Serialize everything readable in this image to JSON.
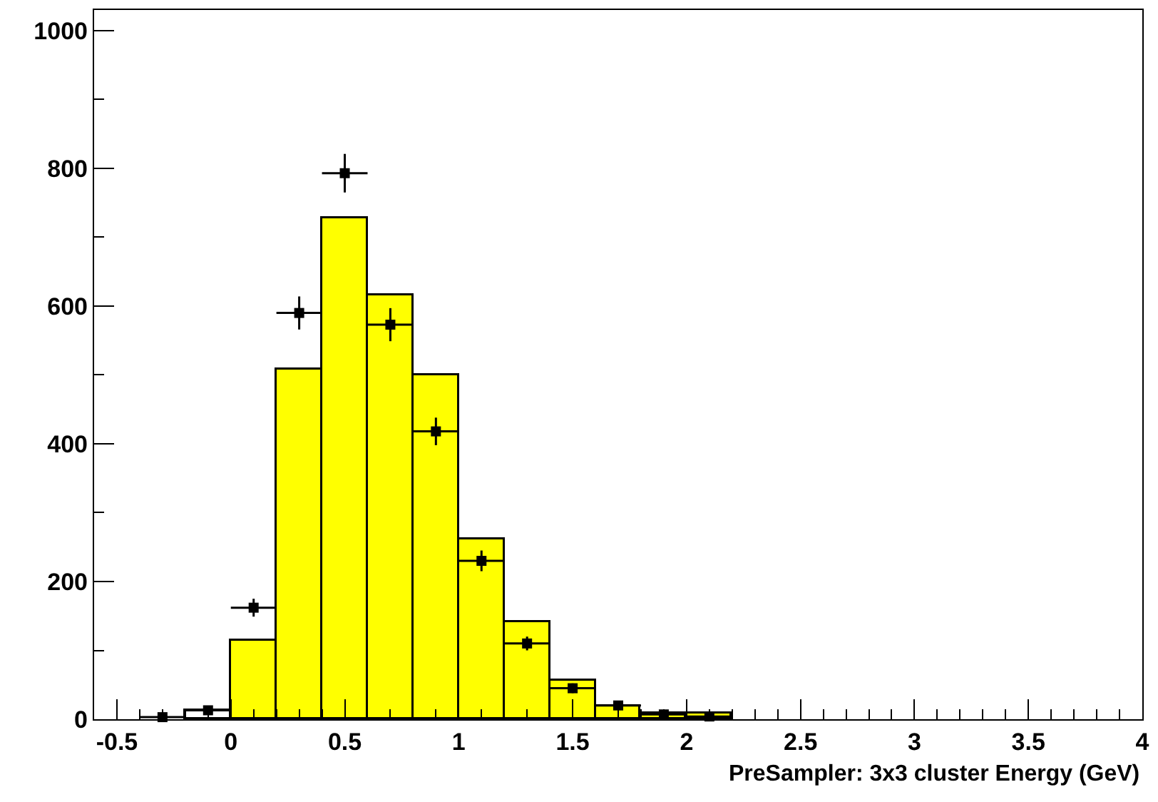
{
  "chart_data": {
    "type": "histogram",
    "xlabel": "PreSampler: 3x3 cluster Energy (GeV)",
    "bins": [
      -0.2,
      0,
      0.2,
      0.4,
      0.6,
      0.8,
      1.0,
      1.2,
      1.4,
      1.6,
      1.8,
      2.0,
      2.2
    ],
    "values": [
      12,
      115,
      508,
      727,
      615,
      500,
      262,
      140,
      55,
      18,
      8,
      8
    ],
    "colors": [
      "#ffffff",
      "#ffff00",
      "#ffff00",
      "#ffff00",
      "#ffff00",
      "#ffff00",
      "#ffff00",
      "#ffff00",
      "#ffff00",
      "#ffff00",
      "#ffff00",
      "#ffff00"
    ],
    "series": [
      {
        "type": "scatter",
        "color": "#000000",
        "marker": "square",
        "x": [
          -0.3,
          -0.1,
          0.1,
          0.3,
          0.5,
          0.7,
          0.9,
          1.1,
          1.3,
          1.5,
          1.7,
          1.9,
          2.1
        ],
        "values": [
          3,
          13,
          162,
          590,
          793,
          573,
          418,
          230,
          110,
          45,
          20,
          7,
          4
        ],
        "errors": [
          2,
          4,
          13,
          24,
          28,
          24,
          20,
          15,
          10,
          7,
          4,
          3,
          2
        ],
        "xerrors": [
          0.1,
          0.1,
          0.1,
          0.1,
          0.1,
          0.1,
          0.1,
          0.1,
          0.1,
          0.1,
          0.1,
          0.1,
          0.1
        ]
      }
    ],
    "xlim": [
      -0.6,
      4.0
    ],
    "ylim": [
      0,
      1030
    ],
    "xticks": [
      -0.5,
      0,
      0.5,
      1,
      1.5,
      2,
      2.5,
      3,
      3.5,
      4
    ],
    "yticks": [
      0,
      200,
      400,
      600,
      800,
      1000
    ]
  }
}
